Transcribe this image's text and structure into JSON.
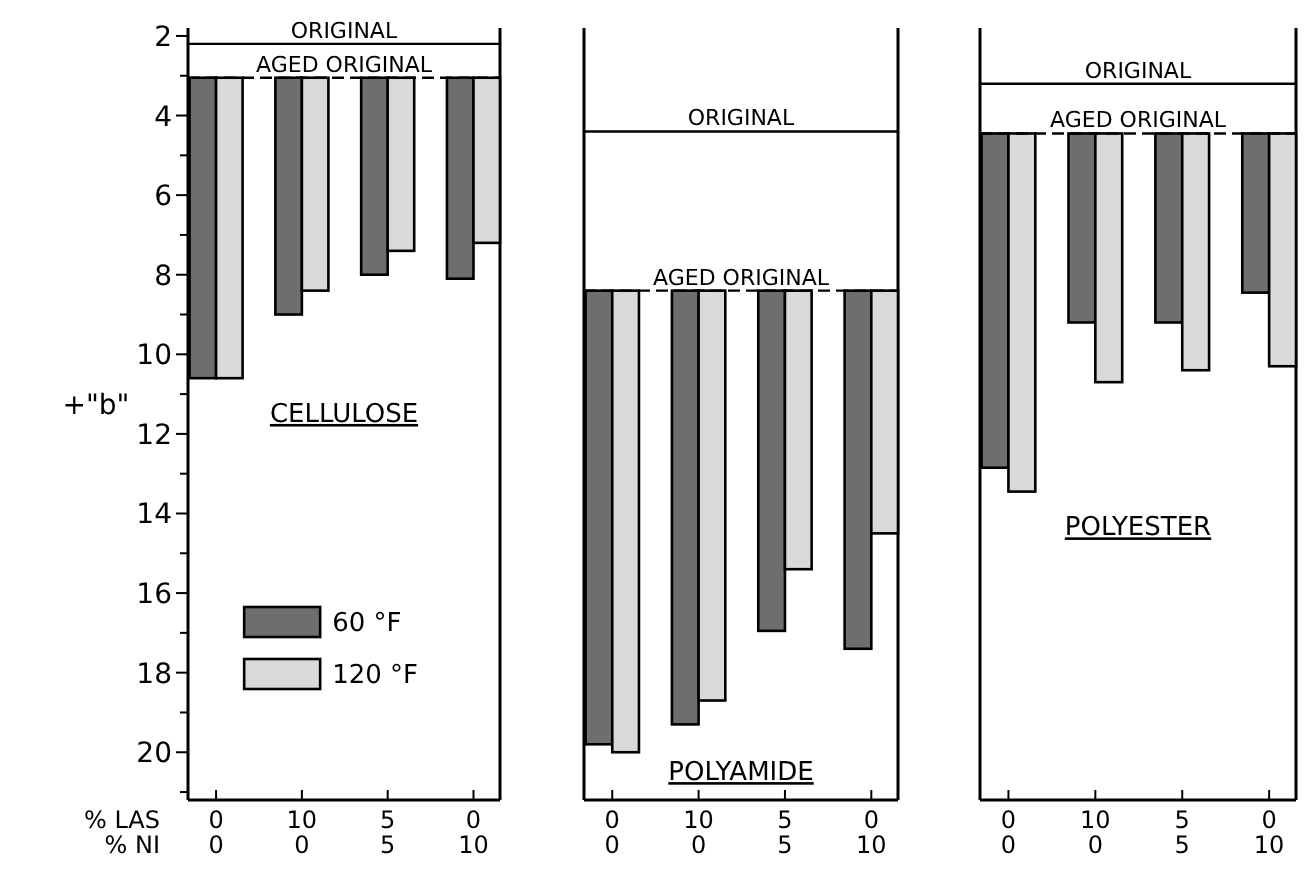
{
  "chart_data": [
    {
      "type": "bar",
      "annotations": [
        "CELLULOSE"
      ],
      "ylabel": "+\"b\"",
      "xlabel": "% LAS\n% NI",
      "categories": [
        "0\n0",
        "10\n0",
        "5\n5",
        "0\n10"
      ],
      "series": [
        {
          "name": "60 °F",
          "color": "#6e6e6e",
          "base": [
            3.05,
            3.05,
            3.05,
            3.05
          ],
          "values": [
            7.55,
            5.95,
            4.95,
            5.05
          ]
        },
        {
          "name": "120 °F",
          "color": "#d9d9d9",
          "base": [
            3.05,
            3.05,
            3.05,
            3.05
          ],
          "values": [
            7.55,
            5.35,
            4.35,
            4.15
          ]
        }
      ],
      "ylim": [
        21.2,
        1.8
      ],
      "yticks": [
        2,
        {
          "value": 3,
          "label": null
        },
        4,
        {
          "value": 5,
          "label": null
        },
        6,
        {
          "value": 7,
          "label": null
        },
        8,
        {
          "value": 9,
          "label": null
        },
        10,
        {
          "value": 11,
          "label": null
        },
        12,
        {
          "value": 13,
          "label": null
        },
        14,
        {
          "value": 15,
          "label": null
        },
        16,
        {
          "value": 17,
          "label": null
        },
        18,
        {
          "value": 19,
          "label": null
        },
        20,
        {
          "value": 21,
          "label": null
        }
      ],
      "ref_lines": [
        {
          "axis": "y",
          "value": 2.2,
          "label": "ORIGINAL",
          "line_style": "solid"
        },
        {
          "axis": "y",
          "value": 3.05,
          "label": "AGED ORIGINAL",
          "line_style": "dashed"
        }
      ],
      "legend": "bottom left",
      "grid": false
    },
    {
      "type": "bar",
      "annotations": [
        "POLYAMIDE"
      ],
      "categories": [
        "0\n0",
        "10\n0",
        "5\n5",
        "0\n10"
      ],
      "series": [
        {
          "color": "#6e6e6e",
          "base": [
            8.4,
            8.4,
            8.4,
            8.4
          ],
          "values": [
            11.4,
            10.9,
            8.55,
            9.0
          ]
        },
        {
          "color": "#d9d9d9",
          "base": [
            8.4,
            8.4,
            8.4,
            8.4
          ],
          "values": [
            11.6,
            10.3,
            7.0,
            6.1
          ]
        }
      ],
      "ylim": [
        21.2,
        1.8
      ],
      "tick_labels": "x",
      "ref_lines": [
        {
          "axis": "y",
          "value": 4.4,
          "label": "ORIGINAL",
          "line_style": "solid"
        },
        {
          "axis": "y",
          "value": 8.4,
          "label": "AGED ORIGINAL",
          "line_style": "dashed"
        }
      ],
      "legend": false,
      "grid": false
    },
    {
      "type": "bar",
      "annotations": [
        "POLYESTER"
      ],
      "categories": [
        "0\n0",
        "10\n0",
        "5\n5",
        "0\n10"
      ],
      "series": [
        {
          "color": "#6e6e6e",
          "base": [
            4.45,
            4.45,
            4.45,
            4.45
          ],
          "values": [
            8.4,
            4.75,
            4.75,
            4.0
          ]
        },
        {
          "color": "#d9d9d9",
          "base": [
            4.45,
            4.45,
            4.45,
            4.45
          ],
          "values": [
            9.0,
            6.25,
            5.95,
            5.85
          ]
        }
      ],
      "ylim": [
        21.2,
        1.8
      ],
      "tick_labels": "x",
      "ref_lines": [
        {
          "axis": "y",
          "value": 3.2,
          "label": "ORIGINAL",
          "line_style": "solid"
        },
        {
          "axis": "y",
          "value": 4.45,
          "label": "AGED ORIGINAL",
          "line_style": "dashed"
        }
      ],
      "legend": false,
      "grid": false
    }
  ]
}
